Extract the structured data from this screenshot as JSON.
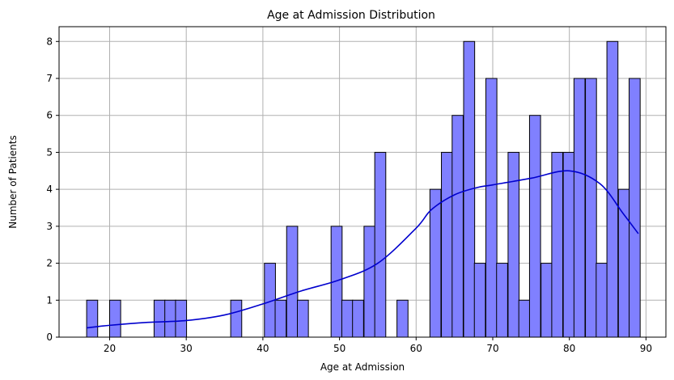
{
  "chart_data": {
    "type": "bar",
    "title": "Age at Admission Distribution",
    "xlabel": "Age at Admission",
    "ylabel": "Number of Patients",
    "xlim": [
      13.4,
      92.6
    ],
    "ylim": [
      0,
      8.4
    ],
    "xticks": [
      20,
      30,
      40,
      50,
      60,
      70,
      80,
      90
    ],
    "yticks": [
      0,
      1,
      2,
      3,
      4,
      5,
      6,
      7,
      8
    ],
    "grid": true,
    "bar_color": "#8080ff",
    "bar_edge_color": "#000000",
    "kde_color": "#0000cd",
    "bin_width": 1.44,
    "bins": [
      {
        "x_start": 17.0,
        "count": 1
      },
      {
        "x_start": 20.0,
        "count": 1
      },
      {
        "x_start": 25.8,
        "count": 1
      },
      {
        "x_start": 27.2,
        "count": 1
      },
      {
        "x_start": 28.6,
        "count": 1
      },
      {
        "x_start": 35.8,
        "count": 1
      },
      {
        "x_start": 40.2,
        "count": 2
      },
      {
        "x_start": 41.6,
        "count": 1
      },
      {
        "x_start": 43.1,
        "count": 3
      },
      {
        "x_start": 44.5,
        "count": 1
      },
      {
        "x_start": 48.9,
        "count": 3
      },
      {
        "x_start": 50.3,
        "count": 1
      },
      {
        "x_start": 51.7,
        "count": 1
      },
      {
        "x_start": 53.2,
        "count": 3
      },
      {
        "x_start": 54.6,
        "count": 5
      },
      {
        "x_start": 57.5,
        "count": 1
      },
      {
        "x_start": 61.8,
        "count": 4
      },
      {
        "x_start": 63.3,
        "count": 5
      },
      {
        "x_start": 64.7,
        "count": 6
      },
      {
        "x_start": 66.2,
        "count": 8
      },
      {
        "x_start": 67.6,
        "count": 2
      },
      {
        "x_start": 69.1,
        "count": 7
      },
      {
        "x_start": 70.5,
        "count": 2
      },
      {
        "x_start": 72.0,
        "count": 5
      },
      {
        "x_start": 73.4,
        "count": 1
      },
      {
        "x_start": 74.8,
        "count": 6
      },
      {
        "x_start": 76.3,
        "count": 2
      },
      {
        "x_start": 77.7,
        "count": 5
      },
      {
        "x_start": 79.2,
        "count": 5
      },
      {
        "x_start": 80.6,
        "count": 7
      },
      {
        "x_start": 82.1,
        "count": 7
      },
      {
        "x_start": 83.5,
        "count": 2
      },
      {
        "x_start": 84.9,
        "count": 8
      },
      {
        "x_start": 86.4,
        "count": 4
      },
      {
        "x_start": 87.8,
        "count": 7
      }
    ],
    "kde": {
      "x": [
        17,
        20,
        25,
        30,
        35,
        40,
        45,
        50,
        55,
        60,
        62,
        65,
        68,
        70,
        75,
        80,
        84,
        87,
        89
      ],
      "y": [
        0.25,
        0.32,
        0.4,
        0.45,
        0.6,
        0.9,
        1.25,
        1.55,
        2.0,
        2.95,
        3.45,
        3.85,
        4.05,
        4.12,
        4.3,
        4.5,
        4.15,
        3.35,
        2.8
      ]
    }
  }
}
